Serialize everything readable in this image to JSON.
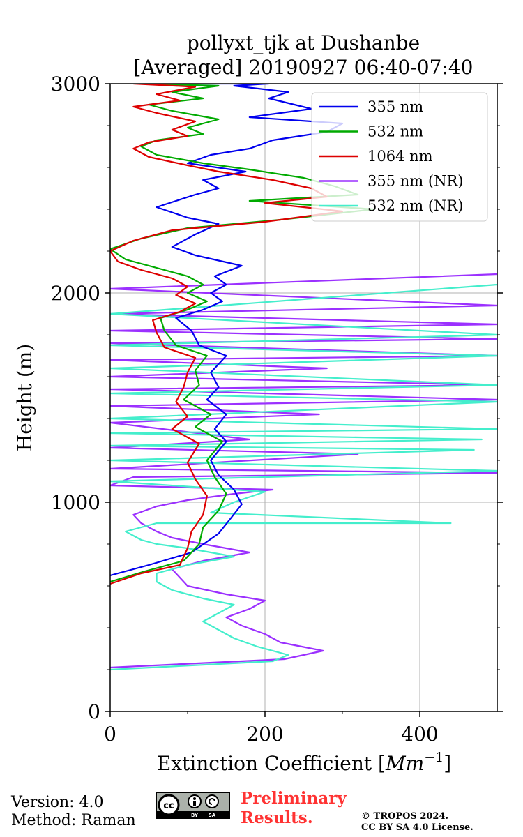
{
  "chart_data": {
    "type": "line",
    "title_line1": "pollyxt_tjk at Dushanbe",
    "title_line2": "[Averaged] 20190927 06:40-07:40",
    "xlabel": "Extinction Coefficient [",
    "xlabel_unit": "Mm",
    "xlabel_exp": "−1",
    "xlabel_end": "]",
    "ylabel": "Height (m)",
    "xlim": [
      0,
      500
    ],
    "ylim": [
      0,
      3000
    ],
    "xticks": [
      0,
      200,
      400
    ],
    "xtick_labels": [
      "0",
      "200",
      "400"
    ],
    "yticks": [
      0,
      1000,
      2000,
      3000
    ],
    "ytick_labels": [
      "0",
      "1000",
      "2000",
      "3000"
    ],
    "grid": true,
    "legend_position": "top-right",
    "series": [
      {
        "name": "355 nm",
        "color": "#0000ee",
        "x": [
          0,
          50,
          105,
          140,
          155,
          170,
          160,
          140,
          130,
          150,
          135,
          150,
          125,
          140,
          130,
          150,
          115,
          105,
          85,
          120,
          145,
          130,
          150,
          135,
          170,
          110,
          80,
          110,
          140,
          100,
          60,
          110,
          140,
          120,
          175,
          100,
          130,
          180,
          210,
          280,
          300,
          180,
          260,
          205,
          230,
          160,
          205,
          120,
          105,
          100,
          95,
          125,
          160,
          160,
          140,
          120,
          115
        ],
        "y": [
          650,
          700,
          760,
          850,
          920,
          990,
          1060,
          1130,
          1200,
          1290,
          1350,
          1420,
          1490,
          1550,
          1620,
          1700,
          1750,
          1820,
          1880,
          1920,
          1960,
          2000,
          2040,
          2080,
          2130,
          2180,
          2220,
          2280,
          2330,
          2360,
          2410,
          2470,
          2500,
          2540,
          2580,
          2620,
          2660,
          2690,
          2730,
          2770,
          2810,
          2840,
          2880,
          2930,
          2960,
          2990,
          3000,
          3000,
          3000,
          3000,
          3000,
          3000,
          3000,
          3000,
          3000,
          3000,
          3000
        ]
      },
      {
        "name": "532 nm",
        "color": "#00aa00",
        "x": [
          0,
          45,
          95,
          115,
          120,
          140,
          150,
          135,
          125,
          145,
          110,
          130,
          95,
          115,
          110,
          125,
          85,
          70,
          65,
          100,
          125,
          100,
          120,
          100,
          60,
          20,
          0,
          40,
          100,
          220,
          340,
          180,
          320,
          290,
          250,
          180,
          120,
          60,
          40,
          60,
          120,
          100,
          140,
          80,
          50,
          120,
          80,
          140,
          40
        ],
        "y": [
          620,
          670,
          720,
          800,
          880,
          960,
          1040,
          1120,
          1200,
          1290,
          1360,
          1420,
          1490,
          1560,
          1630,
          1700,
          1750,
          1820,
          1880,
          1920,
          1960,
          2000,
          2040,
          2080,
          2120,
          2160,
          2210,
          2260,
          2310,
          2350,
          2400,
          2440,
          2470,
          2510,
          2550,
          2590,
          2620,
          2660,
          2700,
          2730,
          2760,
          2790,
          2830,
          2870,
          2900,
          2930,
          2960,
          2990,
          3000
        ]
      },
      {
        "name": "1064 nm",
        "color": "#dd0000",
        "x": [
          0,
          40,
          90,
          100,
          105,
          120,
          125,
          110,
          100,
          115,
          80,
          100,
          85,
          95,
          100,
          110,
          70,
          60,
          55,
          90,
          110,
          85,
          100,
          80,
          40,
          10,
          0,
          30,
          80,
          200,
          300,
          200,
          280,
          260,
          210,
          140,
          100,
          50,
          30,
          50,
          100,
          80,
          110,
          60,
          30,
          90,
          60,
          110,
          30
        ],
        "y": [
          610,
          660,
          700,
          780,
          860,
          940,
          1030,
          1110,
          1190,
          1280,
          1350,
          1410,
          1480,
          1550,
          1620,
          1690,
          1740,
          1810,
          1870,
          1910,
          1950,
          1990,
          2030,
          2070,
          2110,
          2150,
          2200,
          2250,
          2300,
          2340,
          2390,
          2430,
          2460,
          2500,
          2540,
          2580,
          2610,
          2650,
          2690,
          2720,
          2750,
          2780,
          2820,
          2860,
          2890,
          2920,
          2950,
          2985,
          3000
        ]
      },
      {
        "name": "355 nm (NR)",
        "color": "#9b30ff",
        "x": [
          0,
          225,
          275,
          220,
          200,
          170,
          150,
          180,
          200,
          150,
          100,
          90,
          80,
          120,
          180,
          120,
          80,
          60,
          40,
          30,
          60,
          100,
          160,
          210,
          0,
          30,
          500,
          0,
          320,
          0,
          180,
          0,
          270,
          0,
          500,
          0,
          500,
          0,
          280,
          0,
          500,
          0,
          500,
          0,
          500,
          0,
          500,
          0,
          500
        ],
        "y": [
          210,
          250,
          290,
          330,
          370,
          410,
          450,
          490,
          530,
          560,
          600,
          640,
          680,
          720,
          760,
          800,
          830,
          860,
          900,
          940,
          980,
          1010,
          1040,
          1060,
          1080,
          1120,
          1140,
          1160,
          1230,
          1260,
          1300,
          1380,
          1420,
          1460,
          1490,
          1540,
          1560,
          1600,
          1640,
          1680,
          1700,
          1760,
          1780,
          1820,
          1850,
          1900,
          1940,
          2020,
          2090
        ]
      },
      {
        "name": "532 nm (NR)",
        "color": "#44eecc",
        "x": [
          0,
          210,
          230,
          190,
          160,
          140,
          120,
          140,
          160,
          120,
          80,
          60,
          60,
          100,
          160,
          100,
          60,
          40,
          30,
          20,
          40,
          60,
          440,
          130,
          160,
          200,
          0,
          500,
          0,
          470,
          0,
          480,
          0,
          500,
          0,
          500,
          0,
          500,
          0,
          500,
          0,
          500,
          0,
          500
        ],
        "y": [
          200,
          240,
          270,
          310,
          350,
          390,
          430,
          470,
          510,
          540,
          580,
          620,
          660,
          700,
          740,
          780,
          800,
          820,
          840,
          860,
          880,
          900,
          900,
          950,
          1000,
          1050,
          1100,
          1150,
          1200,
          1250,
          1270,
          1300,
          1330,
          1350,
          1400,
          1480,
          1520,
          1560,
          1640,
          1700,
          1750,
          1800,
          1900,
          2040
        ]
      }
    ]
  },
  "footer": {
    "version": "Version: 4.0",
    "method": "Method: Raman",
    "preliminary_line1": "Preliminary",
    "preliminary_line2": "Results.",
    "copyright_line1": "© TROPOS 2024.",
    "copyright_line2": "CC BY SA 4.0 License.",
    "cc_text": "cc",
    "by_text": "BY",
    "sa_text": "SA"
  }
}
